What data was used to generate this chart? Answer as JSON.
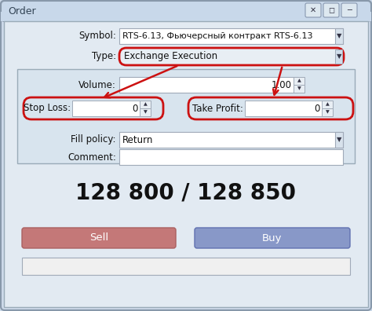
{
  "title": "Order",
  "bg_color": "#cddaea",
  "panel_bg": "#e2eaf2",
  "inner_panel_bg": "#d8e4ee",
  "white": "#ffffff",
  "titlebar_color": "#c8d8ea",
  "border_color": "#a0aab8",
  "red_border": "#cc1111",
  "symbol_label": "Symbol:",
  "symbol_value": "RTS-6.13, Фьючерсный контракт RTS-6.13",
  "type_label": "Type:",
  "type_value": "Exchange Execution",
  "volume_label": "Volume:",
  "volume_value": "1.00",
  "stop_loss_label": "Stop Loss:",
  "stop_loss_value": "0",
  "take_profit_label": "Take Profit:",
  "take_profit_value": "0",
  "fill_policy_label": "Fill policy:",
  "fill_policy_value": "Return",
  "comment_label": "Comment:",
  "price_text": "128 800 / 128 850",
  "sell_text": "Sell",
  "buy_text": "Buy",
  "sell_color": "#c47878",
  "buy_color": "#8898c8",
  "text_color": "#111111",
  "spin_bg": "#e8eef4"
}
